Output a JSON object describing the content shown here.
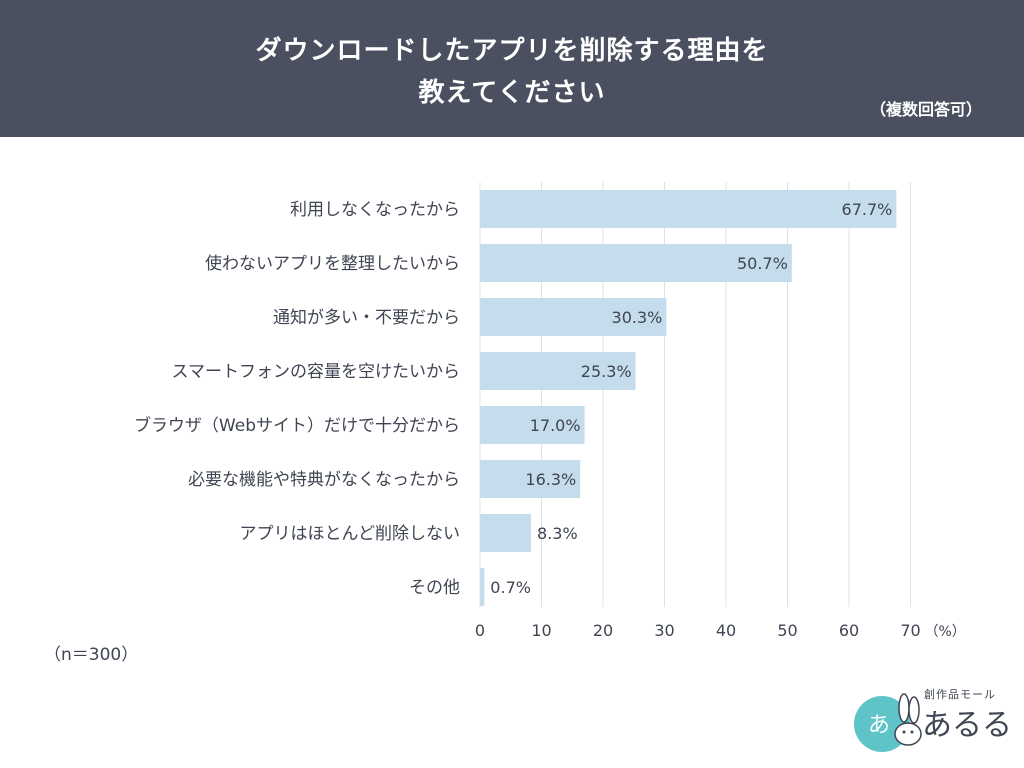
{
  "header": {
    "title_line1": "ダウンロードしたアプリを削除する理由を",
    "title_line2": "教えてください",
    "note": "（複数回答可）"
  },
  "sample_size": "（n＝300）",
  "logo": {
    "sub": "創作品モール",
    "name": "あるる",
    "mark": "あ"
  },
  "colors": {
    "header_bg": "#4b5060",
    "bar": "#c5dcec",
    "grid": "#dde1e6",
    "text": "#3f4552"
  },
  "chart_data": {
    "type": "bar",
    "orientation": "horizontal",
    "categories": [
      "利用しなくなったから",
      "使わないアプリを整理したいから",
      "通知が多い・不要だから",
      "スマートフォンの容量を空けたいから",
      "ブラウザ（Webサイト）だけで十分だから",
      "必要な機能や特典がなくなったから",
      "アプリはほとんど削除しない",
      "その他"
    ],
    "values": [
      67.7,
      50.7,
      30.3,
      25.3,
      17.0,
      16.3,
      8.3,
      0.7
    ],
    "value_labels": [
      "67.7%",
      "50.7%",
      "30.3%",
      "25.3%",
      "17.0%",
      "16.3%",
      "8.3%",
      "0.7%"
    ],
    "xlim": [
      0,
      70
    ],
    "xticks": [
      0,
      10,
      20,
      30,
      40,
      50,
      60,
      70
    ],
    "xtick_labels": [
      "0",
      "10",
      "20",
      "30",
      "40",
      "50",
      "60",
      "70"
    ],
    "xunit": "（%）",
    "grid": true
  }
}
